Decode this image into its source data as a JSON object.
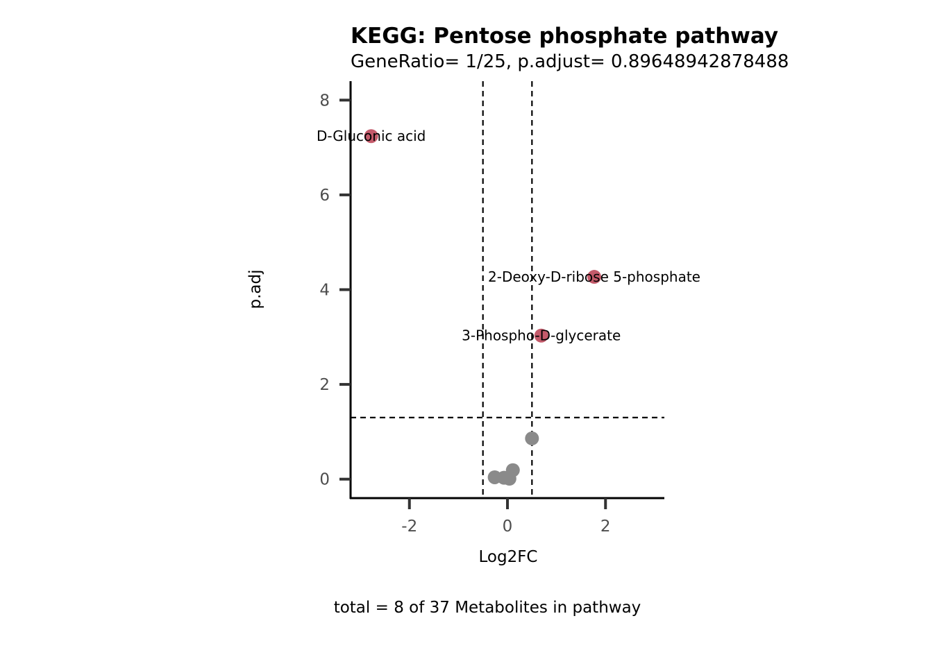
{
  "chart_data": {
    "type": "scatter",
    "title": "KEGG: Pentose phosphate pathway",
    "subtitle": "GeneRatio= 1/25, p.adjust= 0.89648942878488",
    "xlabel": "Log2FC",
    "ylabel": "p.adj",
    "caption": "total = 8 of 37 Metabolites in pathway",
    "xlim": [
      -3.2,
      3.2
    ],
    "ylim": [
      -0.4,
      8.4
    ],
    "xticks": [
      -2,
      0,
      2
    ],
    "yticks": [
      0,
      2,
      4,
      6,
      8
    ],
    "vlines": [
      -0.5,
      0.5
    ],
    "hline": 1.3,
    "grid": false,
    "colors": {
      "significant": "#c45b6b",
      "not_significant": "#8a8a8a"
    },
    "points": [
      {
        "x": -2.78,
        "y": 7.24,
        "label": "D-Gluconic acid",
        "significant": true
      },
      {
        "x": 1.77,
        "y": 4.27,
        "label": "2-Deoxy-D-ribose 5-phosphate",
        "significant": true
      },
      {
        "x": 0.69,
        "y": 3.03,
        "label": "3-Phospho-D-glycerate",
        "significant": true
      },
      {
        "x": 0.5,
        "y": 0.86,
        "label": "",
        "significant": false
      },
      {
        "x": 0.11,
        "y": 0.19,
        "label": "",
        "significant": false
      },
      {
        "x": -0.26,
        "y": 0.04,
        "label": "",
        "significant": false
      },
      {
        "x": -0.07,
        "y": 0.03,
        "label": "",
        "significant": false
      },
      {
        "x": 0.04,
        "y": 0.01,
        "label": "",
        "significant": false
      }
    ]
  }
}
